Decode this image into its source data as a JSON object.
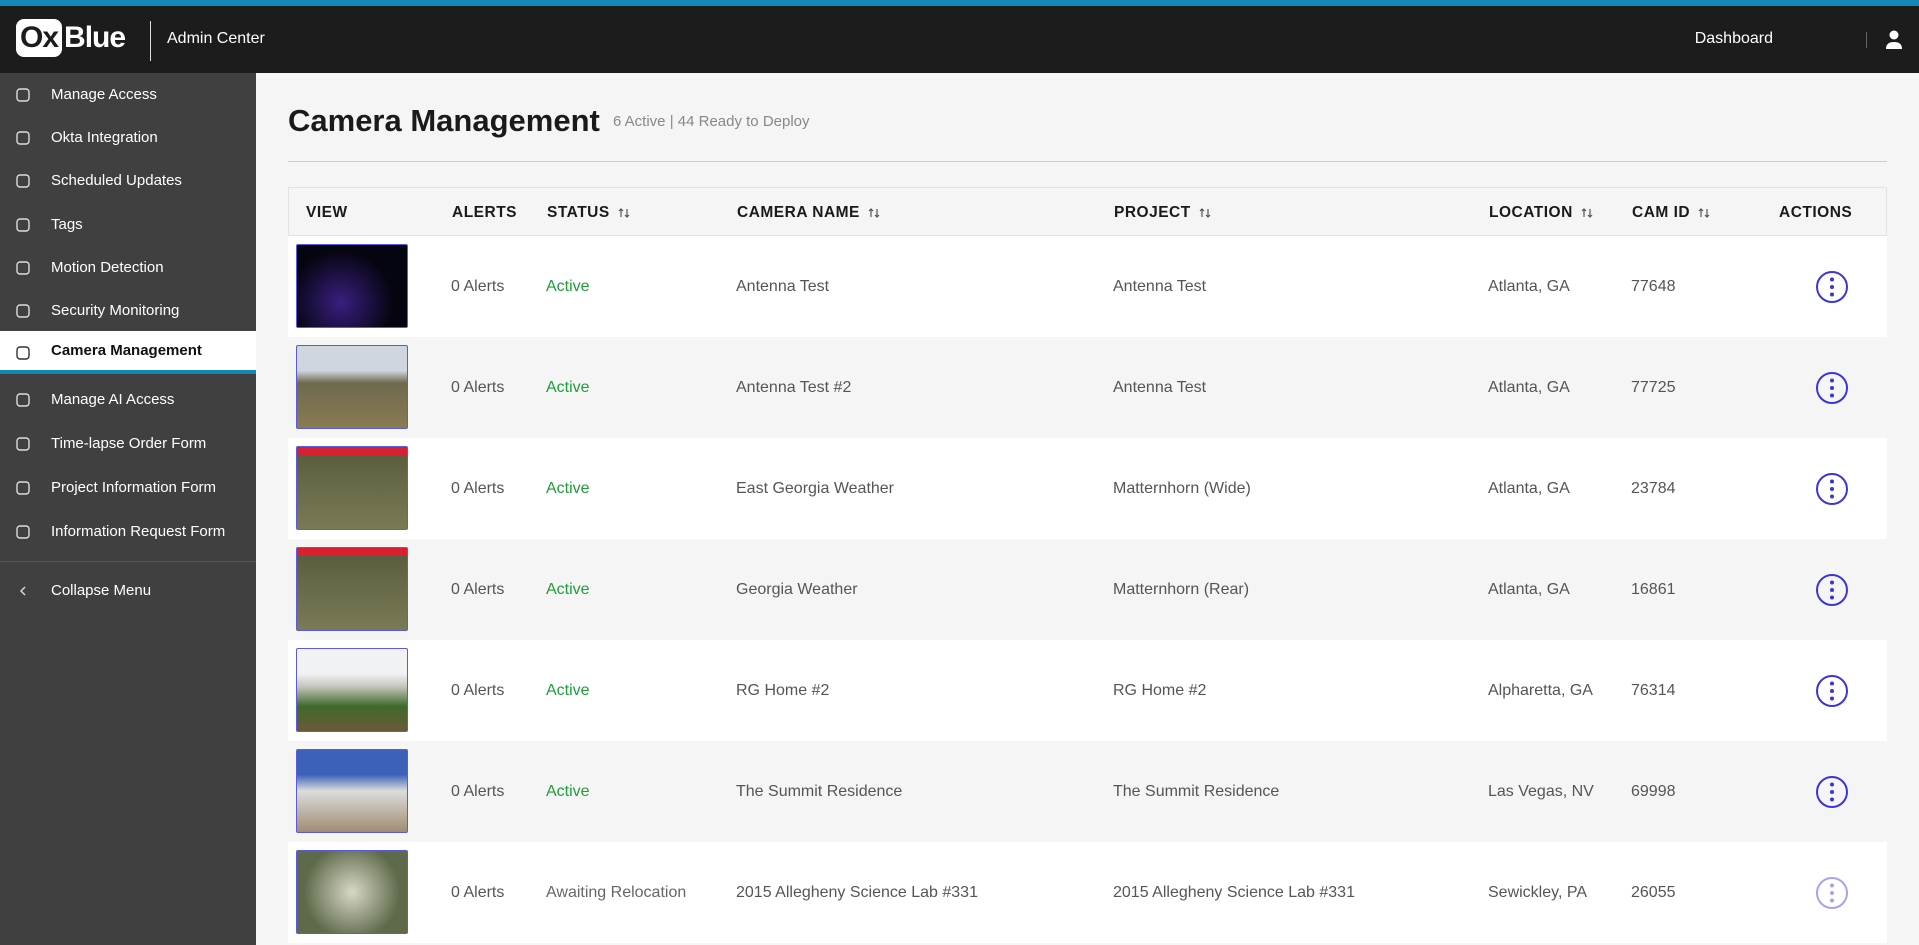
{
  "header": {
    "logo_ox": "Ox",
    "logo_blue": "Blue",
    "app": "Admin Center",
    "dashboard": "Dashboard"
  },
  "sidebar": {
    "items": [
      "Manage Access",
      "Okta Integration",
      "Scheduled Updates",
      "Tags",
      "Motion Detection",
      "Security Monitoring",
      "Camera Management",
      "Manage AI Access",
      "Time-lapse Order Form",
      "Project Information Form",
      "Information Request Form"
    ],
    "collapse": "Collapse Menu"
  },
  "page": {
    "title": "Camera Management",
    "subtitle": "6 Active | 44 Ready to Deploy"
  },
  "table": {
    "columns": [
      "VIEW",
      "ALERTS",
      "STATUS",
      "CAMERA NAME",
      "PROJECT",
      "LOCATION",
      "CAM ID",
      "ACTIONS"
    ],
    "rows": [
      [
        "0 Alerts",
        "Active",
        "Antenna Test",
        "Antenna Test",
        "Atlanta, GA",
        "77648"
      ],
      [
        "0 Alerts",
        "Active",
        "Antenna Test #2",
        "Antenna Test",
        "Atlanta, GA",
        "77725"
      ],
      [
        "0 Alerts",
        "Active",
        "East Georgia Weather",
        "Matternhorn (Wide)",
        "Atlanta, GA",
        "23784"
      ],
      [
        "0 Alerts",
        "Active",
        "Georgia Weather",
        "Matternhorn (Rear)",
        "Atlanta, GA",
        "16861"
      ],
      [
        "0 Alerts",
        "Active",
        "RG Home #2",
        "RG Home #2",
        "Alpharetta, GA",
        "76314"
      ],
      [
        "0 Alerts",
        "Active",
        "The Summit Residence",
        "The Summit Residence",
        "Las Vegas, NV",
        "69998"
      ],
      [
        "0 Alerts",
        "Awaiting Relocation",
        "2015 Allegheny Science Lab #331",
        "2015 Allegheny Science Lab #331",
        "Sewickley, PA",
        "26055"
      ]
    ]
  }
}
